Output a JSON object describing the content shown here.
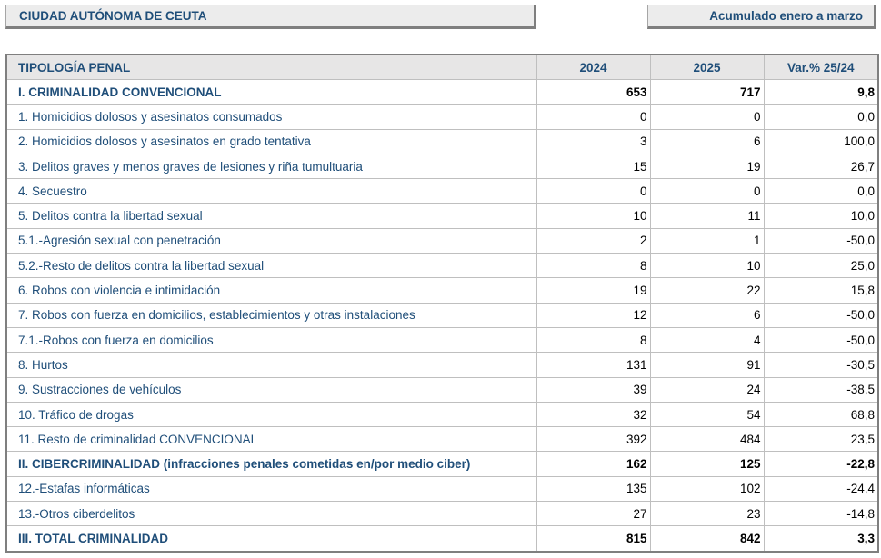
{
  "header": {
    "region": "CIUDAD AUTÓNOMA DE CEUTA",
    "period": "Acumulado enero a marzo"
  },
  "table": {
    "columns": [
      "TIPOLOGÍA PENAL",
      "2024",
      "2025",
      "Var.% 25/24"
    ],
    "rows": [
      {
        "label": "I. CRIMINALIDAD CONVENCIONAL",
        "y2024": "653",
        "y2025": "717",
        "var": "9,8",
        "bold": true
      },
      {
        "label": "1. Homicidios dolosos y asesinatos consumados",
        "y2024": "0",
        "y2025": "0",
        "var": "0,0",
        "bold": false
      },
      {
        "label": "2. Homicidios dolosos y asesinatos en grado tentativa",
        "y2024": "3",
        "y2025": "6",
        "var": "100,0",
        "bold": false
      },
      {
        "label": "3. Delitos graves y menos graves de lesiones y riña tumultuaria",
        "y2024": "15",
        "y2025": "19",
        "var": "26,7",
        "bold": false
      },
      {
        "label": "4. Secuestro",
        "y2024": "0",
        "y2025": "0",
        "var": "0,0",
        "bold": false
      },
      {
        "label": "5. Delitos contra la libertad sexual",
        "y2024": "10",
        "y2025": "11",
        "var": "10,0",
        "bold": false
      },
      {
        "label": "5.1.-Agresión sexual con penetración",
        "y2024": "2",
        "y2025": "1",
        "var": "-50,0",
        "bold": false
      },
      {
        "label": "5.2.-Resto de delitos contra la libertad sexual",
        "y2024": "8",
        "y2025": "10",
        "var": "25,0",
        "bold": false
      },
      {
        "label": "6. Robos con violencia e intimidación",
        "y2024": "19",
        "y2025": "22",
        "var": "15,8",
        "bold": false
      },
      {
        "label": "7. Robos con fuerza en domicilios, establecimientos y otras instalaciones",
        "y2024": "12",
        "y2025": "6",
        "var": "-50,0",
        "bold": false
      },
      {
        "label": "7.1.-Robos con fuerza en domicilios",
        "y2024": "8",
        "y2025": "4",
        "var": "-50,0",
        "bold": false
      },
      {
        "label": "8. Hurtos",
        "y2024": "131",
        "y2025": "91",
        "var": "-30,5",
        "bold": false
      },
      {
        "label": "9. Sustracciones de vehículos",
        "y2024": "39",
        "y2025": "24",
        "var": "-38,5",
        "bold": false
      },
      {
        "label": "10. Tráfico de drogas",
        "y2024": "32",
        "y2025": "54",
        "var": "68,8",
        "bold": false
      },
      {
        "label": "11. Resto de criminalidad CONVENCIONAL",
        "y2024": "392",
        "y2025": "484",
        "var": "23,5",
        "bold": false
      },
      {
        "label": "II. CIBERCRIMINALIDAD (infracciones penales cometidas en/por medio ciber)",
        "y2024": "162",
        "y2025": "125",
        "var": "-22,8",
        "bold": true
      },
      {
        "label": "12.-Estafas informáticas",
        "y2024": "135",
        "y2025": "102",
        "var": "-24,4",
        "bold": false
      },
      {
        "label": "13.-Otros ciberdelitos",
        "y2024": "27",
        "y2025": "23",
        "var": "-14,8",
        "bold": false
      },
      {
        "label": "III. TOTAL CRIMINALIDAD",
        "y2024": "815",
        "y2025": "842",
        "var": "3,3",
        "bold": true
      }
    ]
  }
}
